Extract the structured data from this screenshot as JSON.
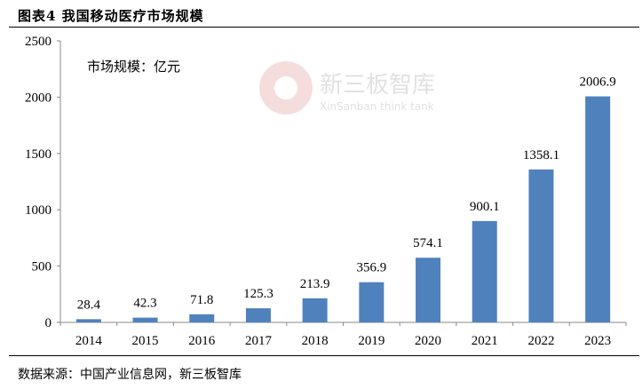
{
  "header": {
    "title": "图表4  我国移动医疗市场规模"
  },
  "footer": {
    "source": "数据来源：中国产业信息网，新三板智库"
  },
  "watermark": {
    "name": "新三板智库",
    "subtitle": "XinSanban think tank"
  },
  "chart_data": {
    "type": "bar",
    "title": "",
    "annotation": "市场规模：亿元",
    "categories": [
      "2014",
      "2015",
      "2016",
      "2017",
      "2018",
      "2019",
      "2020",
      "2021",
      "2022",
      "2023"
    ],
    "values": [
      28.4,
      42.3,
      71.8,
      125.3,
      213.9,
      356.9,
      574.1,
      900.1,
      1358.1,
      2006.9
    ],
    "data_labels": [
      "28.4",
      "42.3",
      "71.8",
      "125.3",
      "213.9",
      "356.9",
      "574.1",
      "900.1",
      "1358.1",
      "2006.9"
    ],
    "ylim": [
      0,
      2500
    ],
    "yticks": [
      0,
      500,
      1000,
      1500,
      2000,
      2500
    ],
    "grid": false,
    "legend": "none",
    "colors": {
      "bar": "#4F81BD"
    }
  }
}
